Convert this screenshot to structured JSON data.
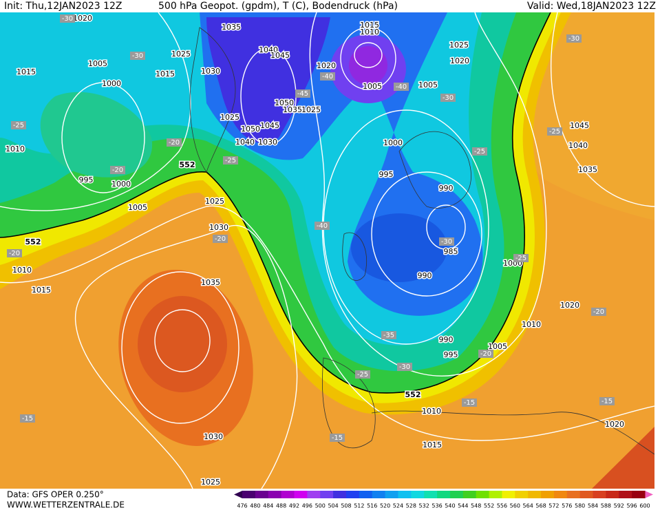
{
  "header": {
    "init": "Init: Thu,12JAN2023 12Z",
    "title": "500 hPa Geopot. (gpdm), T (C), Bodendruck (hPa)",
    "valid": "Valid: Wed,18JAN2023 12Z"
  },
  "footer": {
    "source": "Data: GFS OPER 0.250°",
    "site": "WWW.WETTERZENTRALE.DE"
  },
  "map": {
    "isobar_labels": [
      "1020",
      "1035",
      "1015",
      "1010",
      "1025",
      "1040",
      "1045",
      "1030",
      "1015",
      "1005",
      "1015",
      "1000",
      "1020",
      "1005",
      "1005",
      "1025",
      "1020",
      "1050",
      "1035",
      "1025",
      "1025",
      "1045",
      "1050",
      "1040",
      "1030",
      "1000",
      "1010",
      "995",
      "1000",
      "995",
      "990",
      "1005",
      "1025",
      "1030",
      "985",
      "1000",
      "990",
      "1010",
      "1015",
      "1035",
      "1020",
      "1010",
      "990",
      "1005",
      "995",
      "1010",
      "1015",
      "1030",
      "1025",
      "1020",
      "1045",
      "1040",
      "1035"
    ],
    "height_labels": [
      "552",
      "552",
      "552"
    ],
    "temperature_labels": [
      "-30",
      "-30",
      "-30",
      "-45",
      "-40",
      "-40",
      "-30",
      "-25",
      "-20",
      "-25",
      "-25",
      "-25",
      "-20",
      "-20",
      "-20",
      "-40",
      "-30",
      "-25",
      "-20",
      "-35",
      "-30",
      "-25",
      "-20",
      "-15",
      "-15",
      "-15",
      "-15"
    ]
  },
  "colorbar": {
    "ticks": [
      476,
      480,
      484,
      488,
      492,
      496,
      500,
      504,
      508,
      512,
      516,
      520,
      524,
      528,
      532,
      536,
      540,
      544,
      548,
      552,
      556,
      560,
      564,
      568,
      572,
      576,
      580,
      584,
      588,
      592,
      596,
      600
    ],
    "colors": [
      "#4a0070",
      "#6a0090",
      "#8a00b0",
      "#b000d0",
      "#d000f0",
      "#a040f0",
      "#7040f0",
      "#4030e0",
      "#2040f0",
      "#1060f0",
      "#1080f0",
      "#10a0f0",
      "#10c0f0",
      "#10d8e0",
      "#10e0b0",
      "#10d880",
      "#20d050",
      "#40d020",
      "#70e000",
      "#b0f000",
      "#f0f000",
      "#f0d000",
      "#f0b800",
      "#f0a000",
      "#f08810",
      "#e87020",
      "#e05820",
      "#d84020",
      "#c82818",
      "#b01018",
      "#980010"
    ],
    "below_color": "#300050",
    "above_color": "#f060c0"
  }
}
